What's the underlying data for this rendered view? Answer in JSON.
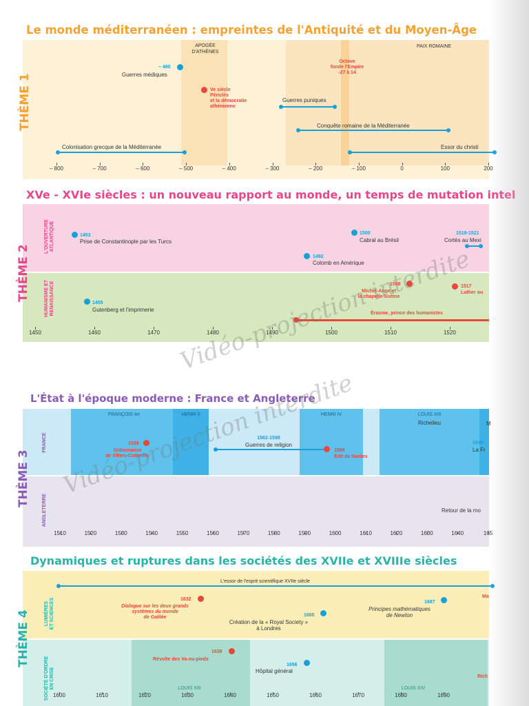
{
  "t1": {
    "title": "Le monde méditerranéen : empreintes de l'Antiquité et du Moyen-Âge",
    "theme": "THÈME 1",
    "period_a": "APOGÉE\nD'ATHÈNES",
    "period_b": "PAIX ROMAINE",
    "ev1_date": "– 490",
    "ev1_text": "Guerres médiques",
    "ev2_text": "Ve siècle\nPériclès\net la démocratie\nathénienne",
    "ev3_text": "Octave\nfonde l'Empire\n-27 à 14",
    "ev4_text": "Guerres puniques",
    "ev5_text": "Conquête romaine de la Méditerranée",
    "ev6_text": "Colonisation grecque de la Méditerranée",
    "ev7_text": "Essor du christi",
    "ticks": [
      "– 800",
      "– 700",
      "– 600",
      "– 500",
      "– 400",
      "– 300",
      "– 200",
      "– 100",
      "0",
      "100",
      "200"
    ]
  },
  "t2": {
    "title": "XVe - XVIe siècles : un nouveau rapport au monde, un temps de mutation intel",
    "theme": "THÈME 2",
    "sub_a": "L'OUVERTURE\nATLANTIQUE",
    "sub_b": "HUMANISME ET\nRENAISSANCE",
    "e1_date": "1453",
    "e1_text": "Prise de Constantinople par les Turcs",
    "e2_date": "1500",
    "e2_text": "Cabral au Brésil",
    "e3_date": "1519-1521",
    "e3_text": "Cortès au Mexi",
    "e4_date": "1492",
    "e4_text": "Colomb en Amérique",
    "e5_date": "1455",
    "e5_text": "Gutenberg et l'imprimerie",
    "e6_date": "1508",
    "e6_text": "Michel-Ange et\nla chapelle Sixtine",
    "e7_date": "1517",
    "e7_text": "Luther ou",
    "e8_text": "Érasme, prince des humanistes",
    "ticks": [
      "1450",
      "1460",
      "1470",
      "1480",
      "1490",
      "1500",
      "1510",
      "1520"
    ]
  },
  "t3": {
    "title": "L'État à l'époque moderne : France et Angleterre",
    "theme": "THÈME 3",
    "sub_a": "FRANCE",
    "sub_b": "ANGLETERRE",
    "k1": "FRANÇOIS Ier",
    "k2": "HENRI II",
    "k3": "HENRI IV",
    "k4": "LOUIS XIII",
    "k4b": "Richelieu",
    "k5": "M",
    "e1_date": "1539",
    "e1_text": "Ordonnance\nde Villers-Cotterêts",
    "e2_date": "1562-1598",
    "e2_text": "Guerres de religion",
    "e3_date": "1598",
    "e3_text": "Édit de Nantes",
    "e4_date": "1648-",
    "e4_text": "La Fr",
    "e5_text": "Retour de la mo",
    "ticks": [
      "1510",
      "1520",
      "1530",
      "1540",
      "1550",
      "1560",
      "1570",
      "1580",
      "1590",
      "1600",
      "1610",
      "1620",
      "1630",
      "1640",
      "165"
    ]
  },
  "t4": {
    "title": "Dynamiques et ruptures dans les sociétés des XVIIe et XVIIIe siècles",
    "theme": "THÈME 4",
    "sub_a": "LUMIÈRES\nET SCIENCES",
    "sub_b": "SOCIÉTÉ D'ORDRE\nEN CRISE",
    "top": "L'essor de l'esprit scientifique XVIIe siècle",
    "e1_date": "1632",
    "e1_text": "Dialogue sur les deux grands\nsystèmes du monde\nde Galilée",
    "e2_date": "1660",
    "e2_text": "Création de la « Royal Society »\nà Londres",
    "e3_date": "1687",
    "e3_text": "Principes mathématiques\nde Newton",
    "e4": "Ma",
    "e5_date": "1639",
    "e5_text": "Révolte des Va-nu-pieds",
    "e6_date": "1656",
    "e6_text": "Hôpital général",
    "e7": "Rich",
    "k1": "LOUIS XIII",
    "k2": "LOUIS XIV",
    "ticks": [
      "1600",
      "1610",
      "1620",
      "1630",
      "1640",
      "1650",
      "1660",
      "1670",
      "1680",
      "1690"
    ]
  },
  "watermark": [
    "Vidéo-projection interdite",
    "Vidéo-projection interdite"
  ],
  "colors": {
    "orange": "#f4a233",
    "pink": "#e8468a",
    "teal": "#2ab3a8",
    "purple": "#8a5cb8",
    "blue": "#1aa0d8",
    "red": "#e8483a"
  }
}
